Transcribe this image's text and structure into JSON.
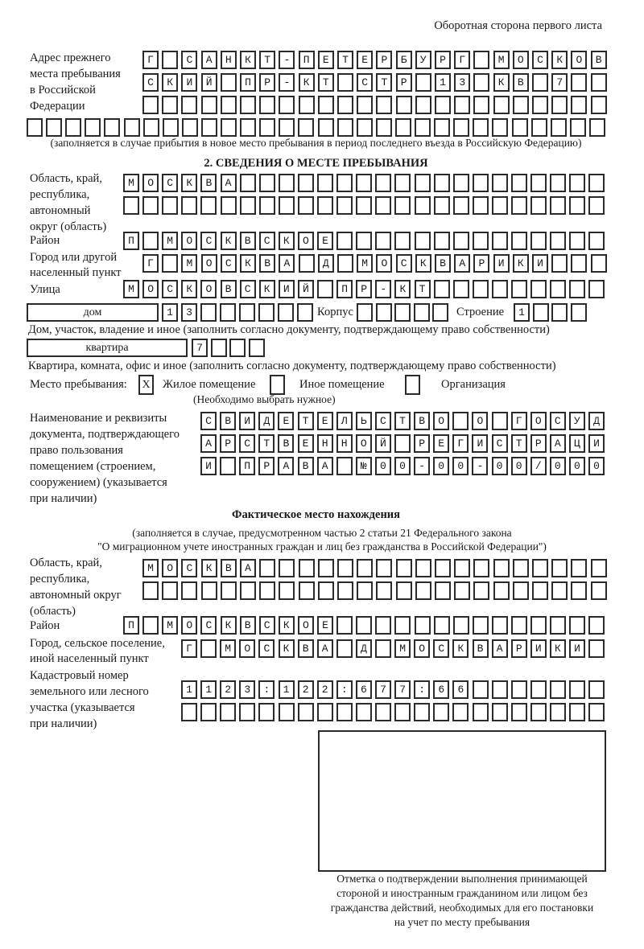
{
  "header": "Оборотная сторона первого листа",
  "previous_address": {
    "label": [
      "Адрес прежнего",
      "места пребывания",
      "в Российской",
      "Федерации"
    ],
    "rows": [
      "Г САНКТ-ПЕТЕРБУРГ МОСКОВ",
      "СКИЙ ПР-КТ СТР 13 КВ 7",
      "",
      ""
    ],
    "note": "(заполняется в случае прибытия в новое место пребывания в период последнего въезда в Российскую Федерацию)"
  },
  "section2": {
    "title": "2. СВЕДЕНИЯ О МЕСТЕ ПРЕБЫВАНИЯ",
    "region_label": [
      "Область, край,",
      "республика,",
      "автономный",
      "округ (область)"
    ],
    "region_rows": [
      "МОСКВА",
      ""
    ],
    "district_label": "Район",
    "district": "П МОСКВСКОЕ",
    "city_label": [
      "Город или другой",
      "населенный пункт"
    ],
    "city": "Г МОСКВА Д МОСКВАРИКИ",
    "street_label": "Улица",
    "street": "МОСКОВСКИЙ ПР-КТ",
    "house_type": "дом",
    "house": "13",
    "korpus_label": "Корпус",
    "korpus": "",
    "building_label": "Строение",
    "building": "1",
    "house_note": "Дом, участок, владение и иное (заполнить согласно документу, подтверждающему право собственности)",
    "apartment_type": "квартира",
    "apartment": "7",
    "apartment_note": "Квартира, комната, офис и иное (заполнить согласно документу, подтверждающему право собственности)",
    "stay_place_label": "Место пребывания:",
    "stay_options": [
      {
        "label": "Жилое помещение",
        "mark": "X"
      },
      {
        "label": "Иное помещение",
        "mark": ""
      },
      {
        "label": "Организация",
        "mark": ""
      }
    ],
    "stay_note": "(Необходимо выбрать нужное)",
    "document_label": [
      "Наименование и реквизиты",
      "документа, подтверждающего",
      "право пользования",
      "помещением (строением,",
      "сооружением) (указывается",
      "при наличии)"
    ],
    "document_rows": [
      "СВИДЕТЕЛЬСТВО О ГОСУД",
      "АРСТВЕННОЙ РЕГИСТРАЦИ",
      "И ПРАВА №00-00-00/000"
    ]
  },
  "actual": {
    "title": "Фактическое место нахождения",
    "note": [
      "(заполняется в случае, предусмотренном частью 2 статьи 21 Федерального закона",
      "\"О миграционном учете иностранных граждан и лиц без гражданства в Российской Федерации\")"
    ],
    "region_label": [
      "Область, край,",
      "республика,",
      "автономный округ",
      "(область)"
    ],
    "region_rows": [
      "МОСКВА",
      ""
    ],
    "district_label": "Район",
    "district": "П МОСКВСКОЕ",
    "city_label": [
      "Город, сельское поселение,",
      "иной населенный пункт"
    ],
    "city": "Г МОСКВА Д МОСКВАРИКИ",
    "cadastral_label": [
      "Кадастровый номер",
      "земельного или лесного",
      "участка (указывается",
      "при наличии)"
    ],
    "cadastral_rows": [
      "1123:122:677:66",
      ""
    ]
  },
  "confirmation_caption": [
    "Отметка о подтверждении выполнения принимающей",
    "стороной и иностранным гражданином или лицом без",
    "гражданства действий, необходимых для его постановки",
    "на учет по месту пребывания"
  ]
}
